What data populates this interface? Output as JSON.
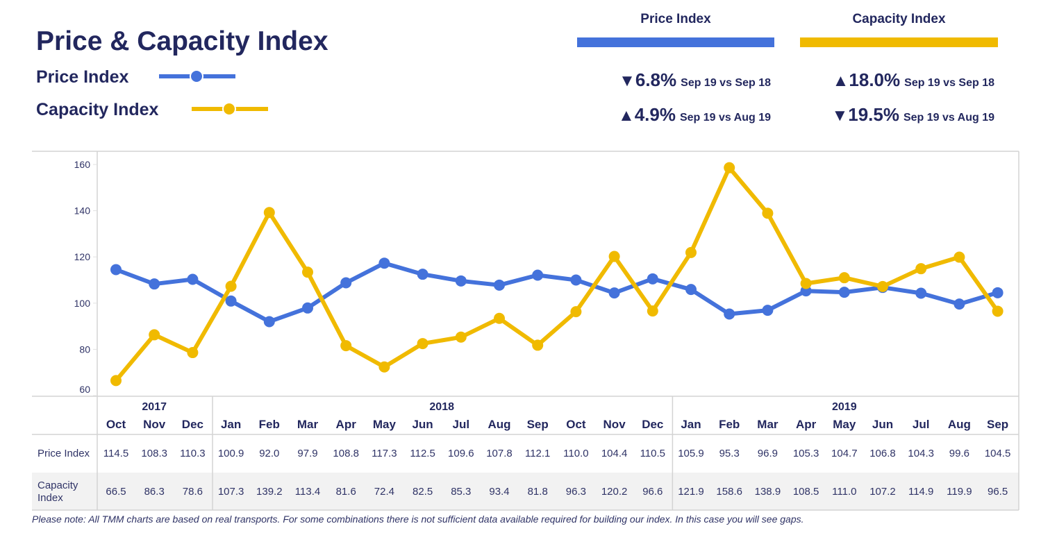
{
  "header": {
    "title": "Price & Capacity Index",
    "legend": [
      {
        "label": "Price Index",
        "color": "#4472db",
        "icon": "line-dot-marker-icon"
      },
      {
        "label": "Capacity Index",
        "color": "#f0ba00",
        "icon": "line-dot-marker-icon"
      }
    ]
  },
  "kpis": [
    {
      "title": "Price Index",
      "color": "#4472db",
      "rows": [
        {
          "arrow": "▼",
          "direction": "down",
          "value": "6.8%",
          "comparison": "Sep 19 vs Sep 18"
        },
        {
          "arrow": "▲",
          "direction": "up",
          "value": "4.9%",
          "comparison": "Sep 19 vs Aug 19"
        }
      ]
    },
    {
      "title": "Capacity Index",
      "color": "#f0ba00",
      "rows": [
        {
          "arrow": "▲",
          "direction": "up",
          "value": "18.0%",
          "comparison": "Sep 19 vs Sep 18"
        },
        {
          "arrow": "▼",
          "direction": "down",
          "value": "19.5%",
          "comparison": "Sep 19 vs Aug 19"
        }
      ]
    }
  ],
  "note": "Please note: All TMM charts are based on real transports. For some combinations there is not sufficient data available required for building our index. In this case you will see gaps.",
  "chart_data": {
    "type": "line",
    "title": "Price & Capacity Index",
    "xlabel": "",
    "ylabel": "",
    "ylim": [
      60,
      160
    ],
    "yticks": [
      "60",
      "80",
      "100",
      "120",
      "140",
      "160"
    ],
    "grid": false,
    "legend_position": "top-left",
    "years": [
      {
        "label": "2017",
        "span": 3
      },
      {
        "label": "2018",
        "span": 12
      },
      {
        "label": "2019",
        "span": 9
      }
    ],
    "categories": [
      "Oct",
      "Nov",
      "Dec",
      "Jan",
      "Feb",
      "Mar",
      "Apr",
      "May",
      "Jun",
      "Jul",
      "Aug",
      "Sep",
      "Oct",
      "Nov",
      "Dec",
      "Jan",
      "Feb",
      "Mar",
      "Apr",
      "May",
      "Jun",
      "Jul",
      "Aug",
      "Sep"
    ],
    "series": [
      {
        "name": "Price Index",
        "row_label": "Price Index",
        "color": "#4472db",
        "values": [
          114.5,
          108.3,
          110.3,
          100.9,
          92.0,
          97.9,
          108.8,
          117.3,
          112.5,
          109.6,
          107.8,
          112.1,
          110.0,
          104.4,
          110.5,
          105.9,
          95.3,
          96.9,
          105.3,
          104.7,
          106.8,
          104.3,
          99.6,
          104.5
        ],
        "labels": [
          "114.5",
          "108.3",
          "110.3",
          "100.9",
          "92.0",
          "97.9",
          "108.8",
          "117.3",
          "112.5",
          "109.6",
          "107.8",
          "112.1",
          "110.0",
          "104.4",
          "110.5",
          "105.9",
          "95.3",
          "96.9",
          "105.3",
          "104.7",
          "106.8",
          "104.3",
          "99.6",
          "104.5"
        ]
      },
      {
        "name": "Capacity Index",
        "row_label": "Capacity\nIndex",
        "color": "#f0ba00",
        "values": [
          66.5,
          86.3,
          78.6,
          107.3,
          139.2,
          113.4,
          81.6,
          72.4,
          82.5,
          85.3,
          93.4,
          81.8,
          96.3,
          120.2,
          96.6,
          121.9,
          158.6,
          138.9,
          108.5,
          111.0,
          107.2,
          114.9,
          119.9,
          96.5
        ],
        "labels": [
          "66.5",
          "86.3",
          "78.6",
          "107.3",
          "139.2",
          "113.4",
          "81.6",
          "72.4",
          "82.5",
          "85.3",
          "93.4",
          "81.8",
          "96.3",
          "120.2",
          "96.6",
          "121.9",
          "158.6",
          "138.9",
          "108.5",
          "111.0",
          "107.2",
          "114.9",
          "119.9",
          "96.5"
        ]
      }
    ]
  }
}
